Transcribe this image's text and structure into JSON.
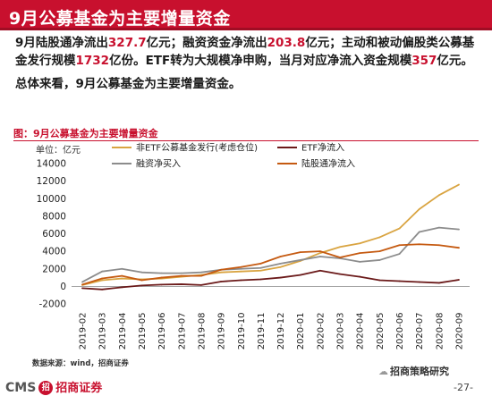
{
  "header": {
    "title": "9月公募基金为主要增量资金",
    "accent_color": "#c8102e"
  },
  "body": {
    "p1": [
      {
        "t": "9月陆股通净流出",
        "hl": false
      },
      {
        "t": "327.7",
        "hl": true
      },
      {
        "t": "亿元；融资资金净流出",
        "hl": false
      },
      {
        "t": "203.8",
        "hl": true
      },
      {
        "t": "亿元；主动和被动偏股类公募基金发行规模",
        "hl": false
      },
      {
        "t": "1732",
        "hl": true
      },
      {
        "t": "亿份。ETF转为大规模净申购，当月对应净流入资金规模",
        "hl": false
      },
      {
        "t": "357",
        "hl": true
      },
      {
        "t": "亿元。",
        "hl": false
      }
    ],
    "p2": "总体来看，9月公募基金为主要增量资金。"
  },
  "chart_caption": "图：9月公募基金为主要增量资金",
  "chart_data": {
    "type": "line",
    "ylabel": "单位：亿元",
    "ylim": [
      -2000,
      14000
    ],
    "yticks": [
      -2000,
      0,
      2000,
      4000,
      6000,
      8000,
      10000,
      12000,
      14000
    ],
    "grid": false,
    "legend_position": "top",
    "categories": [
      "2019-02",
      "2019-03",
      "2019-04",
      "2019-05",
      "2019-06",
      "2019-07",
      "2019-08",
      "2019-09",
      "2019-10",
      "2019-11",
      "2019-12",
      "2020-01",
      "2020-02",
      "2020-03",
      "2020-04",
      "2020-05",
      "2020-06",
      "2020-07",
      "2020-08",
      "2020-09"
    ],
    "series": [
      {
        "name": "非ETF公募基金发行(考虑仓位)",
        "color": "#d9a441",
        "values": [
          150,
          700,
          900,
          800,
          900,
          1100,
          1300,
          1600,
          1700,
          1800,
          2200,
          2900,
          3800,
          4500,
          4900,
          5600,
          6600,
          8800,
          10400,
          11600
        ]
      },
      {
        "name": "ETF净流入",
        "color": "#6b1a1a",
        "values": [
          -200,
          -350,
          -100,
          100,
          200,
          250,
          150,
          550,
          700,
          800,
          1000,
          1300,
          1800,
          1400,
          1100,
          700,
          600,
          500,
          400,
          750
        ]
      },
      {
        "name": "融资净买入",
        "color": "#8c8c8c",
        "values": [
          500,
          1700,
          2000,
          1600,
          1500,
          1500,
          1600,
          1900,
          2000,
          2100,
          2600,
          3000,
          3400,
          3200,
          2800,
          3000,
          3700,
          6200,
          6700,
          6500
        ]
      },
      {
        "name": "陆股通净流入",
        "color": "#c55a11",
        "values": [
          200,
          900,
          1200,
          700,
          1000,
          1200,
          1200,
          1900,
          2200,
          2600,
          3400,
          3900,
          4000,
          3300,
          3800,
          4000,
          4700,
          4800,
          4700,
          4400
        ]
      }
    ]
  },
  "footer": {
    "source": "数据来源：wind，招商证券",
    "logo_text": "CMS",
    "logo_icon": "招",
    "logo_brand": "招商证券",
    "wechat_label": "招商策略研究",
    "page_number": "-27-"
  }
}
